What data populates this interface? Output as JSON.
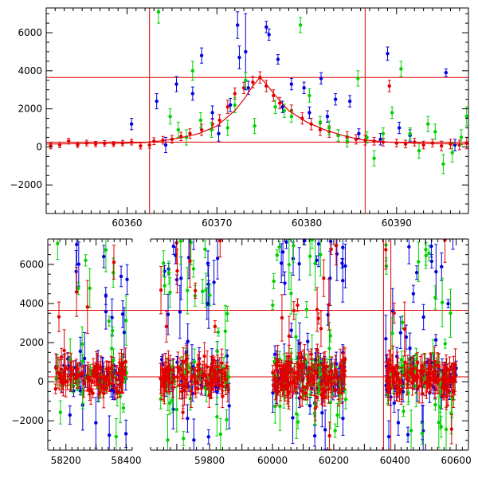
{
  "chart_data": [
    {
      "type": "scatter",
      "title": "",
      "xlabel": "",
      "ylabel": "",
      "xlim": [
        60351,
        60398
      ],
      "ylim": [
        -3500,
        7300
      ],
      "xticks": [
        60360,
        60370,
        60380,
        60390
      ],
      "yticks": [
        -2000,
        0,
        2000,
        4000,
        6000
      ],
      "hlines": [
        3650,
        250
      ],
      "vlines": [
        60362.5,
        60386.5
      ],
      "model": {
        "x": [
          60351,
          60356,
          60360,
          60362,
          60364,
          60366,
          60368,
          60370,
          60372,
          60373,
          60374,
          60374.8,
          60375.5,
          60376.5,
          60378,
          60380,
          60382,
          60384,
          60386,
          60389,
          60393,
          60398
        ],
        "y": [
          150,
          180,
          200,
          230,
          320,
          480,
          700,
          1100,
          1900,
          2500,
          3200,
          3650,
          3300,
          2700,
          1900,
          1300,
          900,
          600,
          380,
          250,
          180,
          150
        ]
      },
      "series": [
        {
          "color": "#e00000",
          "points": [
            [
              60351.5,
              50,
              150
            ],
            [
              60352.5,
              100,
              140
            ],
            [
              60353.5,
              300,
              150
            ],
            [
              60354.5,
              100,
              130
            ],
            [
              60355.5,
              200,
              150
            ],
            [
              60356.5,
              150,
              140
            ],
            [
              60357.5,
              180,
              150
            ],
            [
              60358.5,
              150,
              130
            ],
            [
              60359.5,
              200,
              140
            ],
            [
              60360.5,
              250,
              150
            ],
            [
              60361.5,
              50,
              160
            ],
            [
              60362.5,
              100,
              170
            ],
            [
              60363,
              300,
              180
            ],
            [
              60364,
              350,
              200
            ],
            [
              60365,
              400,
              200
            ],
            [
              60366,
              550,
              220
            ],
            [
              60367,
              700,
              250
            ],
            [
              60368.3,
              900,
              300
            ],
            [
              60369.5,
              1200,
              300
            ],
            [
              60370.3,
              1400,
              300
            ],
            [
              60371.2,
              2100,
              350
            ],
            [
              60372,
              2800,
              300
            ],
            [
              60373,
              3100,
              300
            ],
            [
              60374,
              3400,
              300
            ],
            [
              60374.8,
              3650,
              300
            ],
            [
              60375.5,
              3200,
              300
            ],
            [
              60376.3,
              2700,
              300
            ],
            [
              60377,
              2300,
              300
            ],
            [
              60378.3,
              1900,
              300
            ],
            [
              60379.5,
              1500,
              300
            ],
            [
              60380.5,
              1200,
              300
            ],
            [
              60381.5,
              900,
              300
            ],
            [
              60382.5,
              800,
              300
            ],
            [
              60383.5,
              600,
              300
            ],
            [
              60384.5,
              500,
              300
            ],
            [
              60385.5,
              400,
              250
            ],
            [
              60386.5,
              350,
              250
            ],
            [
              60387.5,
              300,
              200
            ],
            [
              60388.5,
              250,
              200
            ],
            [
              60389.2,
              3200,
              300
            ],
            [
              60390,
              200,
              200
            ],
            [
              60391,
              150,
              200
            ],
            [
              60392,
              250,
              200
            ],
            [
              60393,
              100,
              200
            ],
            [
              60394,
              200,
              200
            ],
            [
              60395,
              50,
              250
            ],
            [
              60396,
              150,
              250
            ],
            [
              60397,
              100,
              250
            ],
            [
              60397.8,
              200,
              300
            ]
          ]
        },
        {
          "color": "#0000e0",
          "points": [
            [
              60360.5,
              1200,
              300
            ],
            [
              60363.3,
              2400,
              400
            ],
            [
              60364.3,
              100,
              400
            ],
            [
              60365.5,
              3300,
              400
            ],
            [
              60367.3,
              2800,
              350
            ],
            [
              60368.3,
              4800,
              400
            ],
            [
              60369.5,
              1800,
              350
            ],
            [
              60370.2,
              700,
              400
            ],
            [
              60371.5,
              2200,
              350
            ],
            [
              60372.3,
              6400,
              700
            ],
            [
              60372.5,
              4700,
              600
            ],
            [
              60373.2,
              5000,
              2000
            ],
            [
              60373.5,
              3100,
              350
            ],
            [
              60375.5,
              6300,
              300
            ],
            [
              60375.8,
              5900,
              300
            ],
            [
              60376.8,
              4600,
              250
            ],
            [
              60377.3,
              2100,
              300
            ],
            [
              60378.3,
              3300,
              300
            ],
            [
              60379.7,
              3100,
              300
            ],
            [
              60380.3,
              1800,
              300
            ],
            [
              60381.6,
              3600,
              300
            ],
            [
              60382.3,
              1600,
              300
            ],
            [
              60383.2,
              2500,
              300
            ],
            [
              60384.8,
              2400,
              300
            ],
            [
              60385.8,
              700,
              250
            ],
            [
              60388.2,
              400,
              300
            ],
            [
              60389,
              4900,
              350
            ],
            [
              60390.3,
              1000,
              300
            ],
            [
              60391.5,
              600,
              300
            ],
            [
              60395.5,
              3900,
              200
            ],
            [
              60396.5,
              100,
              300
            ]
          ]
        },
        {
          "color": "#00d000",
          "points": [
            [
              60363.5,
              7100,
              600
            ],
            [
              60364.8,
              1600,
              400
            ],
            [
              60365.7,
              900,
              400
            ],
            [
              60366.6,
              500,
              400
            ],
            [
              60367.3,
              4000,
              500
            ],
            [
              60368.2,
              1400,
              400
            ],
            [
              60369.4,
              900,
              400
            ],
            [
              60371.2,
              1000,
              400
            ],
            [
              60372,
              2200,
              400
            ],
            [
              60373.2,
              3500,
              400
            ],
            [
              60374.2,
              1100,
              400
            ],
            [
              60376.5,
              2100,
              350
            ],
            [
              60377.5,
              1900,
              350
            ],
            [
              60378.3,
              1600,
              300
            ],
            [
              60379.3,
              6400,
              400
            ],
            [
              60380.3,
              2700,
              350
            ],
            [
              60381.5,
              1300,
              300
            ],
            [
              60382.5,
              1000,
              350
            ],
            [
              60383.5,
              600,
              300
            ],
            [
              60384.5,
              300,
              300
            ],
            [
              60385.7,
              3600,
              400
            ],
            [
              60386.7,
              500,
              300
            ],
            [
              60387.5,
              -600,
              400
            ],
            [
              60388.5,
              700,
              300
            ],
            [
              60389.5,
              1800,
              300
            ],
            [
              60390.5,
              4100,
              400
            ],
            [
              60391.5,
              700,
              300
            ],
            [
              60392.5,
              -200,
              400
            ],
            [
              60393.5,
              1200,
              400
            ],
            [
              60394.3,
              800,
              400
            ],
            [
              60395.2,
              -900,
              500
            ],
            [
              60396.2,
              -300,
              500
            ],
            [
              60397.2,
              500,
              400
            ],
            [
              60397.8,
              1600,
              500
            ]
          ]
        }
      ]
    },
    {
      "type": "scatter",
      "title": "",
      "xlabel": "",
      "ylabel": "",
      "ylim": [
        -3500,
        7300
      ],
      "yticks": [
        -2000,
        0,
        2000,
        4000,
        6000
      ],
      "hlines": [
        3650,
        250
      ],
      "segments": [
        {
          "xlim": [
            58140,
            58420
          ],
          "xticks": [
            58200,
            58400
          ]
        },
        {
          "xlim": [
            59620,
            59880
          ],
          "xticks": [
            59800
          ]
        },
        {
          "xlim": [
            59880,
            60640
          ],
          "xticks": [
            60000,
            60200,
            60400,
            60600
          ]
        }
      ],
      "vlines": [
        60362.5,
        60386.5
      ],
      "series_colors": [
        "#e00000",
        "#0000e0",
        "#00d000"
      ],
      "clusters": [
        {
          "segment": 0,
          "x0": 58165,
          "x1": 58405,
          "noise": 600,
          "n": 95,
          "outliers": 20
        },
        {
          "segment": 1,
          "x0": 59650,
          "x1": 59860,
          "noise": 700,
          "n": 105,
          "outliers": 26
        },
        {
          "segment": 2,
          "x0": 60000,
          "x1": 60240,
          "noise": 750,
          "n": 135,
          "outliers": 34
        },
        {
          "segment": 2,
          "x0": 60370,
          "x1": 60600,
          "noise": 650,
          "n": 120,
          "outliers": 28
        }
      ]
    }
  ]
}
